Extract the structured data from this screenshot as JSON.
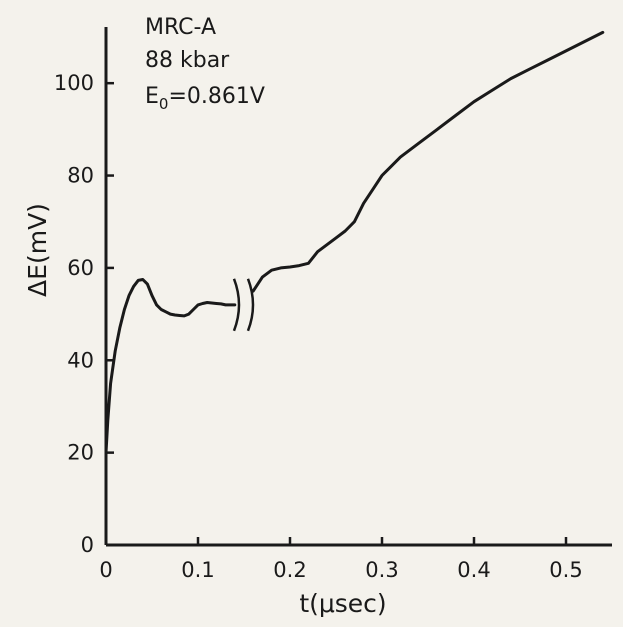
{
  "chart_data": {
    "type": "line",
    "xlabel": "t(μsec)",
    "ylabel": "ΔE(mV)",
    "xlim": [
      0,
      0.55
    ],
    "ylim": [
      0,
      110
    ],
    "xticks": [
      0,
      0.1,
      0.2,
      0.3,
      0.4,
      0.5
    ],
    "xtick_labels": [
      "0",
      "0.1",
      "0.2",
      "0.3",
      "0.4",
      "0.5"
    ],
    "yticks": [
      0,
      20,
      40,
      60,
      80,
      100
    ],
    "ytick_labels": [
      "0",
      "20",
      "40",
      "60",
      "80",
      "100"
    ],
    "grid": false,
    "annotation": {
      "line1": "MRC-A",
      "line2": "88 kbar",
      "line3_prefix": "E",
      "line3_sub": "0",
      "line3_suffix": "=0.861V"
    },
    "axis_break": {
      "x": 0.15
    },
    "series": [
      {
        "x": [
          0,
          0.002,
          0.005,
          0.01,
          0.015,
          0.02,
          0.025,
          0.03,
          0.035,
          0.04,
          0.045,
          0.05,
          0.055,
          0.06,
          0.065,
          0.07,
          0.075,
          0.08,
          0.085,
          0.09,
          0.095,
          0.1,
          0.105,
          0.11,
          0.115,
          0.12,
          0.125,
          0.13,
          0.135,
          0.14
        ],
        "y": [
          20,
          27,
          35,
          42,
          47,
          51,
          54,
          56,
          57.3,
          57.5,
          56.5,
          54,
          52,
          51,
          50.5,
          50,
          49.8,
          49.7,
          49.6,
          50,
          51,
          52,
          52.3,
          52.5,
          52.4,
          52.3,
          52.2,
          52,
          52,
          52
        ]
      },
      {
        "x": [
          0.16,
          0.17,
          0.18,
          0.19,
          0.2,
          0.21,
          0.22,
          0.23,
          0.24,
          0.25,
          0.26,
          0.27,
          0.28,
          0.29,
          0.3,
          0.31,
          0.32,
          0.34,
          0.36,
          0.38,
          0.4,
          0.42,
          0.44,
          0.46,
          0.48,
          0.5,
          0.52,
          0.54
        ],
        "y": [
          55,
          58,
          59.5,
          60,
          60.2,
          60.5,
          61,
          63.5,
          65,
          66.5,
          68,
          70,
          74,
          77,
          80,
          82,
          84,
          87,
          90,
          93,
          96,
          98.5,
          101,
          103,
          105,
          107,
          109,
          111
        ]
      }
    ]
  }
}
